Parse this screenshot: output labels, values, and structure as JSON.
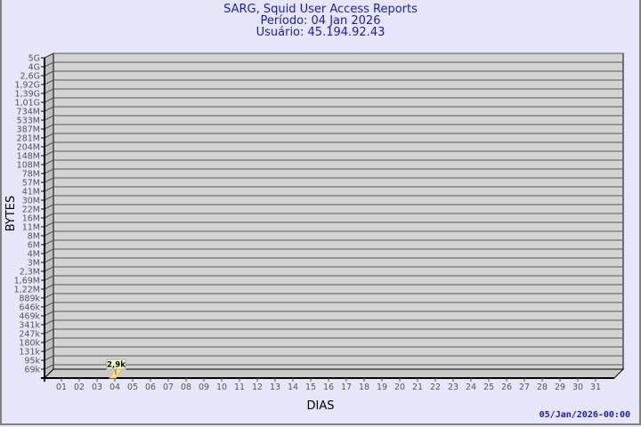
{
  "header": {
    "title": "SARG, Squid User Access Reports",
    "period": "Período: 04 Jan 2026",
    "user": "Usuário: 45.194.92.43"
  },
  "footer": {
    "timestamp": "05/Jan/2026-00:00"
  },
  "chart_data": {
    "type": "bar",
    "xlabel": "DIAS",
    "ylabel": "BYTES",
    "categories": [
      "01",
      "02",
      "03",
      "04",
      "05",
      "06",
      "07",
      "08",
      "09",
      "10",
      "11",
      "12",
      "13",
      "14",
      "15",
      "16",
      "17",
      "18",
      "19",
      "20",
      "21",
      "22",
      "23",
      "24",
      "25",
      "26",
      "27",
      "28",
      "29",
      "30",
      "31"
    ],
    "y_tick_labels": [
      "5G",
      "4G",
      "2,6G",
      "1,92G",
      "1,39G",
      "1,01G",
      "734M",
      "533M",
      "387M",
      "281M",
      "204M",
      "148M",
      "108M",
      "78M",
      "57M",
      "41M",
      "30M",
      "22M",
      "16M",
      "11M",
      "8M",
      "6M",
      "4M",
      "3M",
      "2,3M",
      "1,69M",
      "1,22M",
      "889k",
      "646k",
      "469k",
      "341k",
      "247k",
      "180k",
      "131k",
      "95k",
      "69k"
    ],
    "y_scale": "log",
    "grid": true,
    "series": [
      {
        "values": [
          null,
          null,
          null,
          2900,
          null,
          null,
          null,
          null,
          null,
          null,
          null,
          null,
          null,
          null,
          null,
          null,
          null,
          null,
          null,
          null,
          null,
          null,
          null,
          null,
          null,
          null,
          null,
          null,
          null,
          null,
          null
        ]
      }
    ],
    "data_labels": [
      {
        "category": "04",
        "text": "2,9k"
      }
    ],
    "colors": {
      "plot_bg": "#d3d3d3",
      "bar": "#ffe680",
      "label_bg": "#ffffc0",
      "grid": "#555555"
    }
  }
}
